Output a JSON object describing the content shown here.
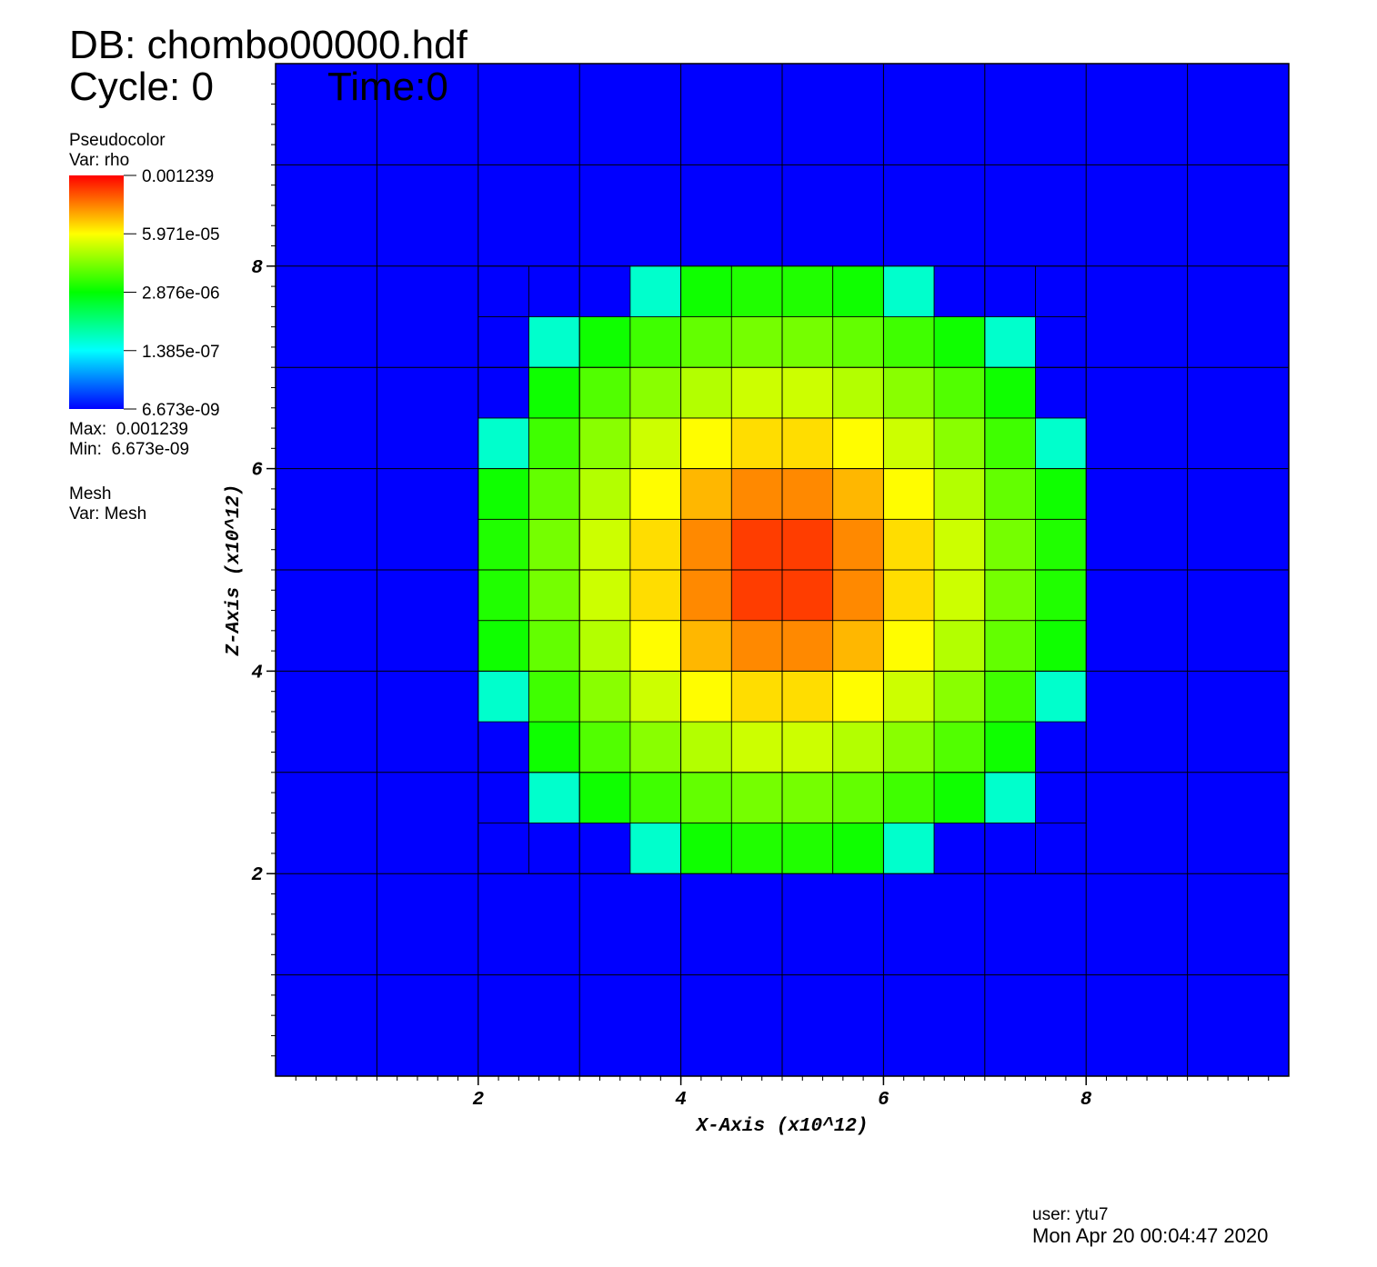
{
  "header": {
    "db": "DB: chombo00000.hdf",
    "cycle": "Cycle: 0",
    "time": "Time:0"
  },
  "legend": {
    "plot": "Pseudocolor",
    "var": "Var: rho",
    "max_text": "Max:  0.001239",
    "min_text": "Min:  6.673e-09",
    "mesh": "Mesh",
    "mesh_var": "Var: Mesh"
  },
  "footer": {
    "user": "user: ytu7",
    "date": "Mon Apr 20 00:04:47 2020"
  },
  "chart_data": {
    "type": "heatmap",
    "xlabel": "X-Axis (x10^12)",
    "ylabel": "Z-Axis (x10^12)",
    "xlim": [
      0,
      10
    ],
    "ylim": [
      0,
      10
    ],
    "xticks": [
      2,
      4,
      6,
      8
    ],
    "yticks": [
      2,
      4,
      6,
      8
    ],
    "log_color_scale": true,
    "clim": [
      6.673e-09,
      0.001239
    ],
    "colorbar_ticks": [
      0.001239,
      {
        "value": 5.971e-05,
        "label": "5.971e-05"
      },
      {
        "value": 2.876e-06,
        "label": "2.876e-06"
      },
      {
        "value": 1.385e-07,
        "label": "1.385e-07"
      },
      {
        "value": 6.673e-09,
        "label": "6.673e-09"
      }
    ],
    "colormap": [
      [
        0,
        "#0000ff"
      ],
      [
        0.25,
        "#00ffff"
      ],
      [
        0.5,
        "#00ff00"
      ],
      [
        0.75,
        "#ffff00"
      ],
      [
        1,
        "#ff0000"
      ]
    ],
    "x": [
      2,
      2.5,
      3,
      3.5,
      4,
      4.5,
      5,
      5.5,
      6,
      6.5,
      7,
      7.5,
      8
    ],
    "z": [
      2,
      2.5,
      3,
      3.5,
      4,
      4.5,
      5,
      5.5,
      6,
      6.5,
      7,
      7.5,
      8
    ],
    "values": [
      [
        6.673e-09,
        6.673e-09,
        6.673e-09,
        2.54e-07,
        3.45e-06,
        4.19e-06,
        4.19e-06,
        3.45e-06,
        2.54e-07,
        6.673e-09,
        6.673e-09,
        6.673e-09
      ],
      [
        6.673e-09,
        2.54e-07,
        3.45e-06,
        6.1e-06,
        9.33e-06,
        1.16e-05,
        1.16e-05,
        9.33e-06,
        6.1e-06,
        3.45e-06,
        2.54e-07,
        6.673e-09
      ],
      [
        6.673e-09,
        3.45e-06,
        7.5e-06,
        1.46e-05,
        2.43e-05,
        3.25e-05,
        3.25e-05,
        2.43e-05,
        1.46e-05,
        7.5e-06,
        3.45e-06,
        6.673e-09
      ],
      [
        2.54e-07,
        6.1e-06,
        1.46e-05,
        3.25e-05,
        6.11e-05,
        8.9e-05,
        8.9e-05,
        6.11e-05,
        3.25e-05,
        1.46e-05,
        6.1e-06,
        2.54e-07
      ],
      [
        3.45e-06,
        9.33e-06,
        2.43e-05,
        6.11e-05,
        0.00014,
        0.000244,
        0.000244,
        0.00014,
        6.11e-05,
        2.43e-05,
        9.33e-06,
        3.45e-06
      ],
      [
        4.19e-06,
        1.16e-05,
        3.25e-05,
        8.9e-05,
        0.000244,
        0.000598,
        0.000598,
        0.000244,
        8.9e-05,
        3.25e-05,
        1.16e-05,
        4.19e-06
      ],
      [
        4.19e-06,
        1.16e-05,
        3.25e-05,
        8.9e-05,
        0.000244,
        0.000598,
        0.000598,
        0.000244,
        8.9e-05,
        3.25e-05,
        1.16e-05,
        4.19e-06
      ],
      [
        3.45e-06,
        9.33e-06,
        2.43e-05,
        6.11e-05,
        0.00014,
        0.000244,
        0.000244,
        0.00014,
        6.11e-05,
        2.43e-05,
        9.33e-06,
        3.45e-06
      ],
      [
        2.54e-07,
        6.1e-06,
        1.46e-05,
        3.25e-05,
        6.11e-05,
        8.9e-05,
        8.9e-05,
        6.11e-05,
        3.25e-05,
        1.46e-05,
        6.1e-06,
        2.54e-07
      ],
      [
        6.673e-09,
        3.45e-06,
        7.5e-06,
        1.46e-05,
        2.43e-05,
        3.25e-05,
        3.25e-05,
        2.43e-05,
        1.46e-05,
        7.5e-06,
        3.45e-06,
        6.673e-09
      ],
      [
        6.673e-09,
        2.54e-07,
        3.45e-06,
        6.1e-06,
        9.33e-06,
        1.16e-05,
        1.16e-05,
        9.33e-06,
        6.1e-06,
        3.45e-06,
        2.54e-07,
        6.673e-09
      ],
      [
        6.673e-09,
        6.673e-09,
        6.673e-09,
        2.54e-07,
        3.45e-06,
        4.19e-06,
        4.19e-06,
        3.45e-06,
        2.54e-07,
        6.673e-09,
        6.673e-09,
        6.673e-09
      ]
    ]
  }
}
